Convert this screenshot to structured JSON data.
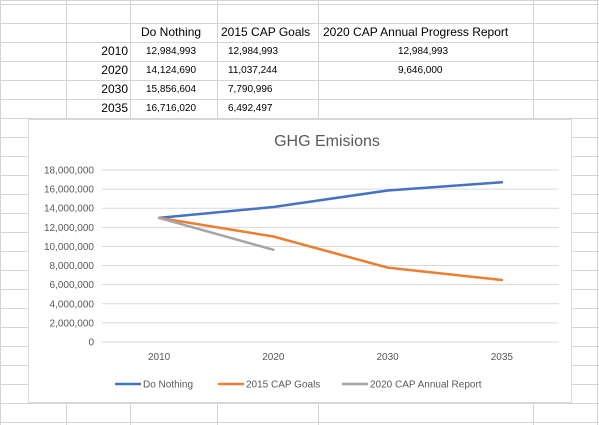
{
  "sheet": {
    "headers": [
      "Do Nothing",
      "2015 CAP Goals",
      "2020 CAP Annual Progress Report"
    ],
    "rows": [
      {
        "year": "2010",
        "do_nothing": "12,984,993",
        "cap_goals": "12,984,993",
        "progress": "12,984,993"
      },
      {
        "year": "2020",
        "do_nothing": "14,124,690",
        "cap_goals": "11,037,244",
        "progress": "9,646,000"
      },
      {
        "year": "2030",
        "do_nothing": "15,856,604",
        "cap_goals": "7,790,996",
        "progress": ""
      },
      {
        "year": "2035",
        "do_nothing": "16,716,020",
        "cap_goals": "6,492,497",
        "progress": ""
      }
    ]
  },
  "chart_data": {
    "type": "line",
    "title": "GHG Emisions",
    "categories": [
      "2010",
      "2020",
      "2030",
      "2035"
    ],
    "y_ticks": [
      "0",
      "2,000,000",
      "4,000,000",
      "6,000,000",
      "8,000,000",
      "10,000,000",
      "12,000,000",
      "14,000,000",
      "16,000,000",
      "18,000,000"
    ],
    "ylim": [
      0,
      18000000
    ],
    "grid": true,
    "legend_position": "bottom",
    "series": [
      {
        "name": "Do Nothing",
        "color": "#4472c4",
        "values": [
          12984993,
          14124690,
          15856604,
          16716020
        ]
      },
      {
        "name": "2015 CAP Goals",
        "color": "#ed7d31",
        "values": [
          12984993,
          11037244,
          7790996,
          6492497
        ]
      },
      {
        "name": "2020 CAP Annual Report",
        "color": "#a5a5a5",
        "values": [
          12984993,
          9646000,
          null,
          null
        ]
      }
    ]
  }
}
